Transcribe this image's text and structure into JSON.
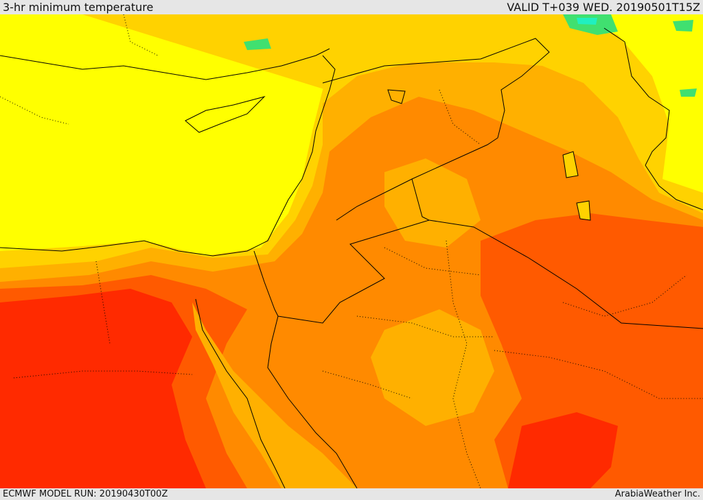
{
  "header": {
    "title": "3-hr minimum temperature",
    "valid": "VALID T+039 WED. 20190501T15Z"
  },
  "footer": {
    "model_run": "ECMWF MODEL RUN: 20190430T00Z",
    "credit": "ArabiaWeather Inc."
  },
  "colors": {
    "sea_yellow": "#ffff00",
    "light_orange": "#ffd200",
    "orange": "#ffb000",
    "dark_orange": "#ff8a00",
    "red_orange": "#ff5a00",
    "red": "#ff2a00",
    "green": "#40e070",
    "cyan": "#20f0c0",
    "border": "#000000"
  }
}
